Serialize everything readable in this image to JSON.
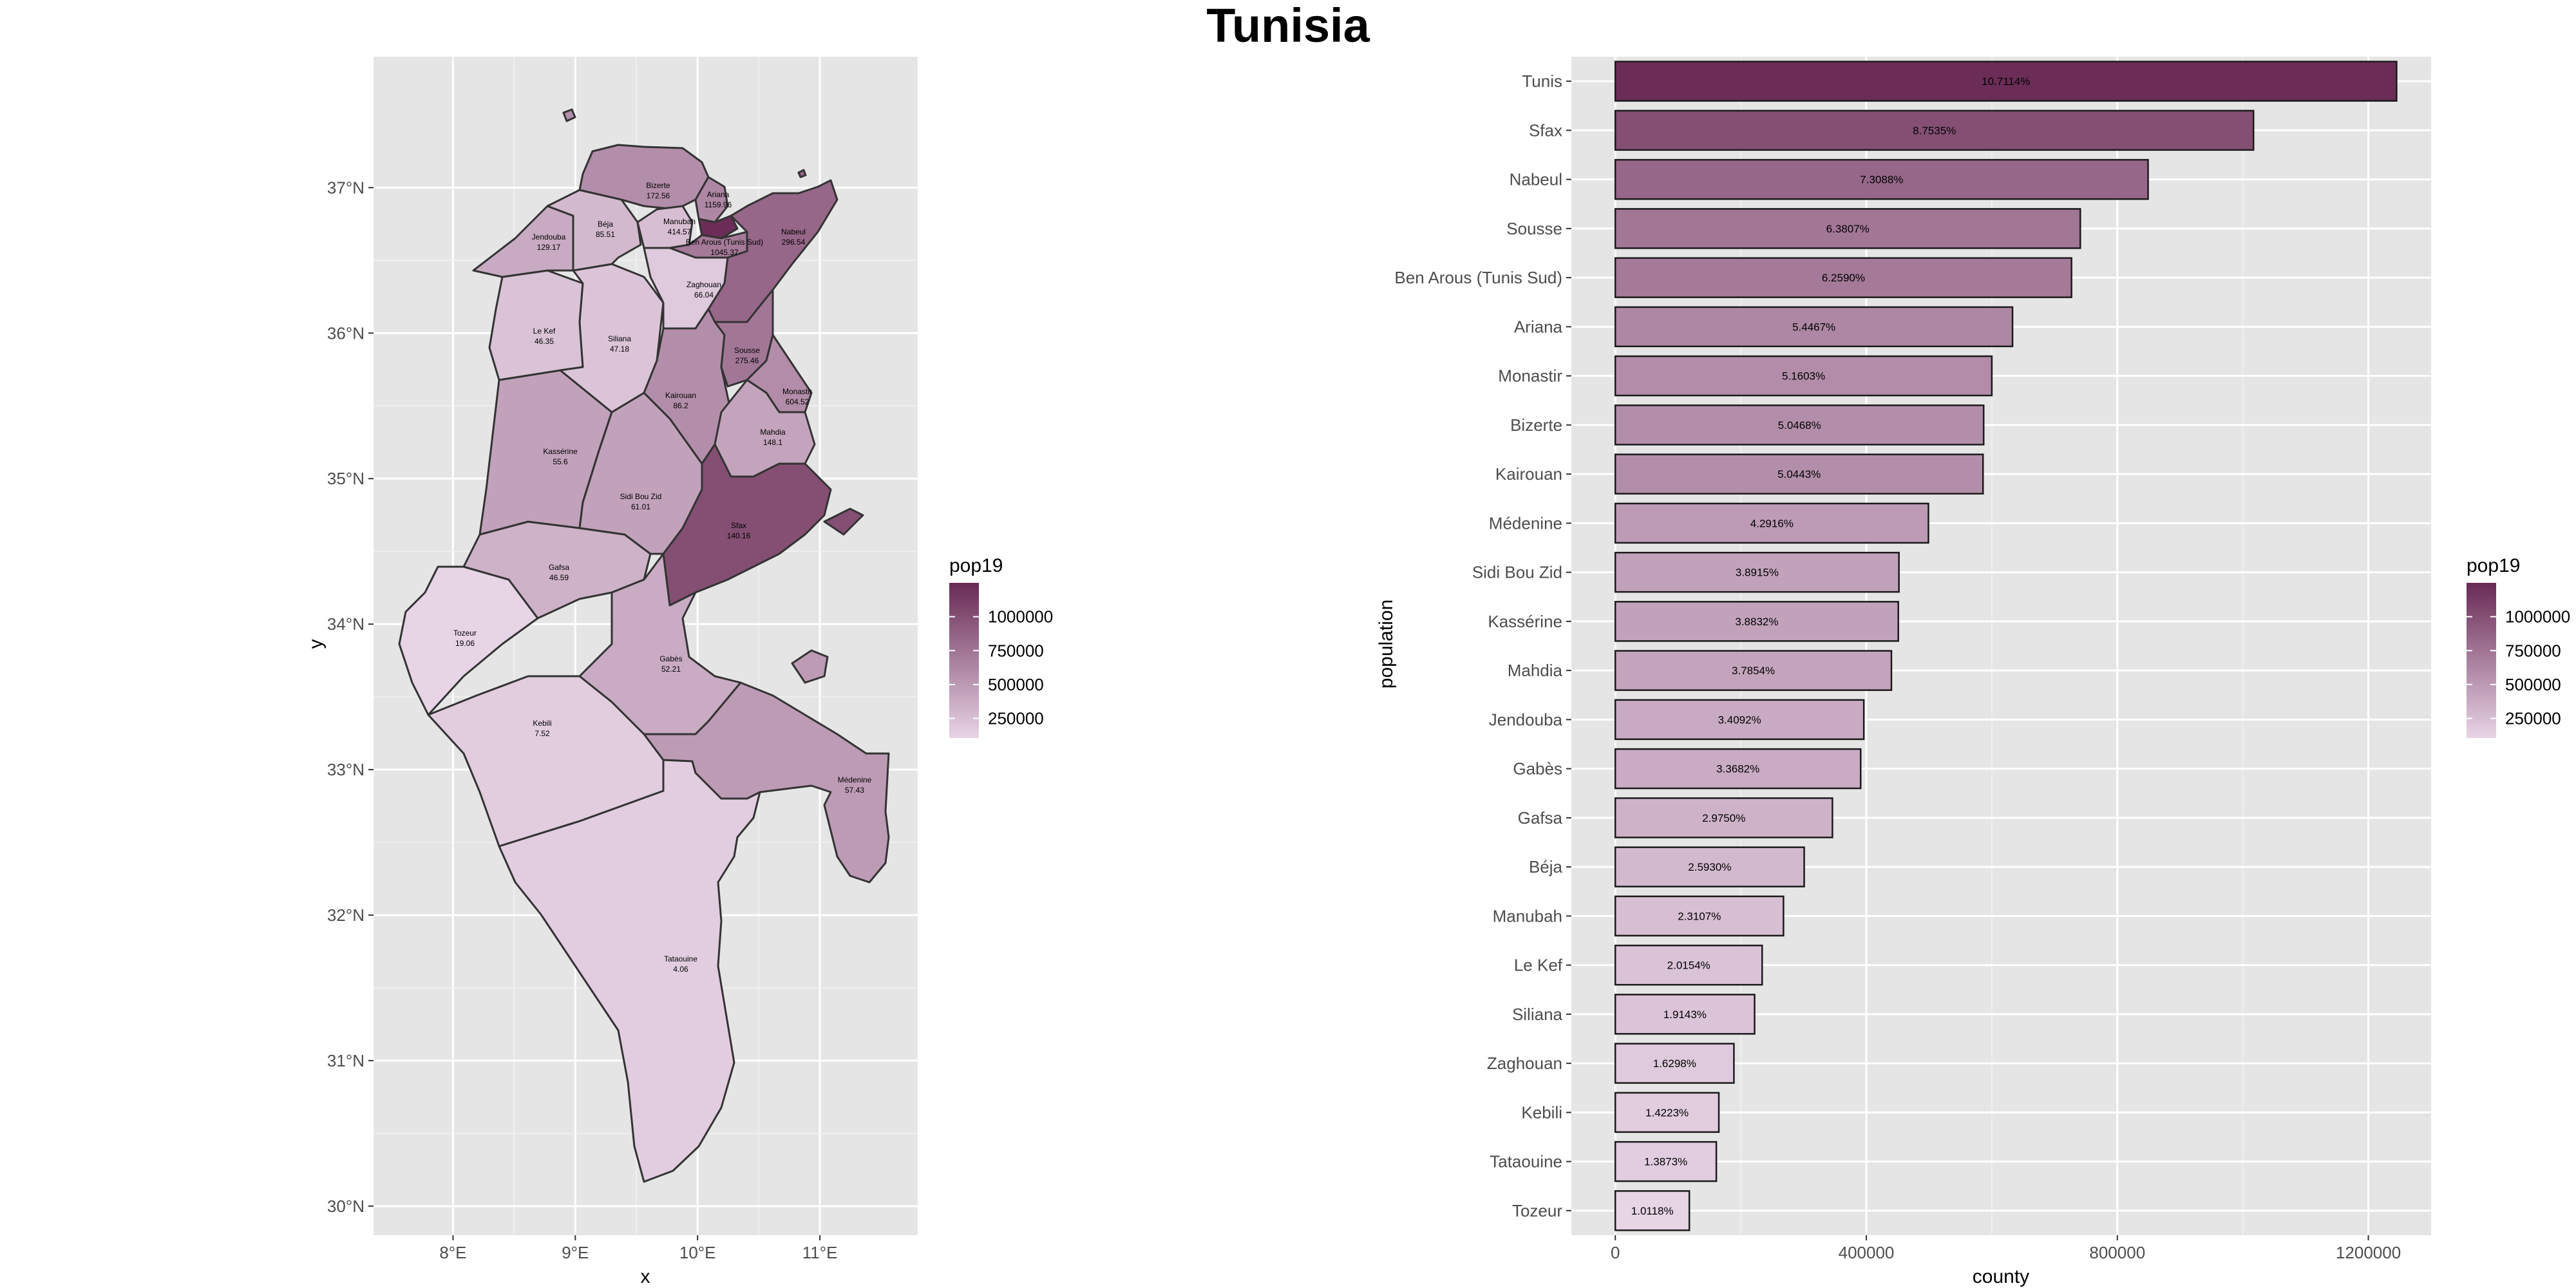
{
  "title": "Tunisia",
  "chart_data": [
    {
      "type": "map",
      "xlabel": "x",
      "ylabel": "y",
      "x_ticks": [
        "8°E",
        "9°E",
        "10°E",
        "11°E"
      ],
      "x_tick_values": [
        8,
        9,
        10,
        11
      ],
      "y_ticks": [
        "30°N",
        "31°N",
        "32°N",
        "33°N",
        "34°N",
        "35°N",
        "36°N",
        "37°N"
      ],
      "y_tick_values": [
        30,
        31,
        32,
        33,
        34,
        35,
        36,
        37
      ],
      "xlim": [
        7.35,
        11.8
      ],
      "ylim": [
        29.8,
        37.9
      ],
      "legend": {
        "title": "pop19",
        "ticks": [
          "250000",
          "500000",
          "750000",
          "1000000"
        ],
        "tick_values": [
          250000,
          500000,
          750000,
          1000000
        ],
        "range": [
          110000,
          1250000
        ],
        "low_color": "#e8d5e6",
        "high_color": "#6a2c56"
      },
      "regions": [
        {
          "name": "Tunis",
          "value": ""
        },
        {
          "name": "Bizerte",
          "value": "172.56"
        },
        {
          "name": "Ariana",
          "value": "1159.96"
        },
        {
          "name": "Béja",
          "value": "85.51"
        },
        {
          "name": "Manubah",
          "value": "414.57"
        },
        {
          "name": "Ben Arous (Tunis Sud)",
          "value": "1045.37"
        },
        {
          "name": "Nabeul",
          "value": "296.54"
        },
        {
          "name": "Jendouba",
          "value": "129.17"
        },
        {
          "name": "Zaghouan",
          "value": "66.04"
        },
        {
          "name": "Le Kef",
          "value": "46.35"
        },
        {
          "name": "Siliana",
          "value": "47.18"
        },
        {
          "name": "Sousse",
          "value": "275.46"
        },
        {
          "name": "Kairouan",
          "value": "86.2"
        },
        {
          "name": "Monastir",
          "value": "604.52"
        },
        {
          "name": "Mahdia",
          "value": "148.1"
        },
        {
          "name": "Kassérine",
          "value": "55.6"
        },
        {
          "name": "Sidi Bou Zid",
          "value": "61.01"
        },
        {
          "name": "Sfax",
          "value": "140.16"
        },
        {
          "name": "Gafsa",
          "value": "46.59"
        },
        {
          "name": "Tozeur",
          "value": "19.06"
        },
        {
          "name": "Gabès",
          "value": "52.21"
        },
        {
          "name": "Kebili",
          "value": "7.52"
        },
        {
          "name": "Médenine",
          "value": "57.43"
        },
        {
          "name": "Tataouine",
          "value": "4.06"
        }
      ]
    },
    {
      "type": "bar",
      "orientation": "horizontal",
      "xlabel": "county",
      "ylabel": "population",
      "x_ticks": [
        "0",
        "400000",
        "800000",
        "1200000"
      ],
      "x_tick_values": [
        0,
        400000,
        800000,
        1200000
      ],
      "xlim": [
        -70000,
        1300000
      ],
      "legend": {
        "title": "pop19",
        "ticks": [
          "250000",
          "500000",
          "750000",
          "1000000"
        ],
        "tick_values": [
          250000,
          500000,
          750000,
          1000000
        ],
        "range": [
          110000,
          1250000
        ]
      },
      "categories": [
        "Tunis",
        "Sfax",
        "Nabeul",
        "Sousse",
        "Ben Arous (Tunis Sud)",
        "Ariana",
        "Monastir",
        "Bizerte",
        "Kairouan",
        "Médenine",
        "Sidi Bou Zid",
        "Kassérine",
        "Mahdia",
        "Jendouba",
        "Gabès",
        "Gafsa",
        "Béja",
        "Manubah",
        "Le Kef",
        "Siliana",
        "Zaghouan",
        "Kebili",
        "Tataouine",
        "Tozeur"
      ],
      "values": [
        1245000,
        1017000,
        849000,
        741000,
        727000,
        633000,
        600000,
        587000,
        586000,
        499000,
        452000,
        451000,
        440000,
        396000,
        391000,
        346000,
        301000,
        268000,
        234000,
        222000,
        189000,
        165000,
        161000,
        118000
      ],
      "labels": [
        "10.7114%",
        "8.7535%",
        "7.3088%",
        "6.3807%",
        "6.2590%",
        "5.4467%",
        "5.1603%",
        "5.0468%",
        "5.0443%",
        "4.2916%",
        "3.8915%",
        "3.8832%",
        "3.7854%",
        "3.4092%",
        "3.3682%",
        "2.9750%",
        "2.5930%",
        "2.3107%",
        "2.0154%",
        "1.9143%",
        "1.6298%",
        "1.4223%",
        "1.3873%",
        "1.0118%"
      ]
    }
  ]
}
